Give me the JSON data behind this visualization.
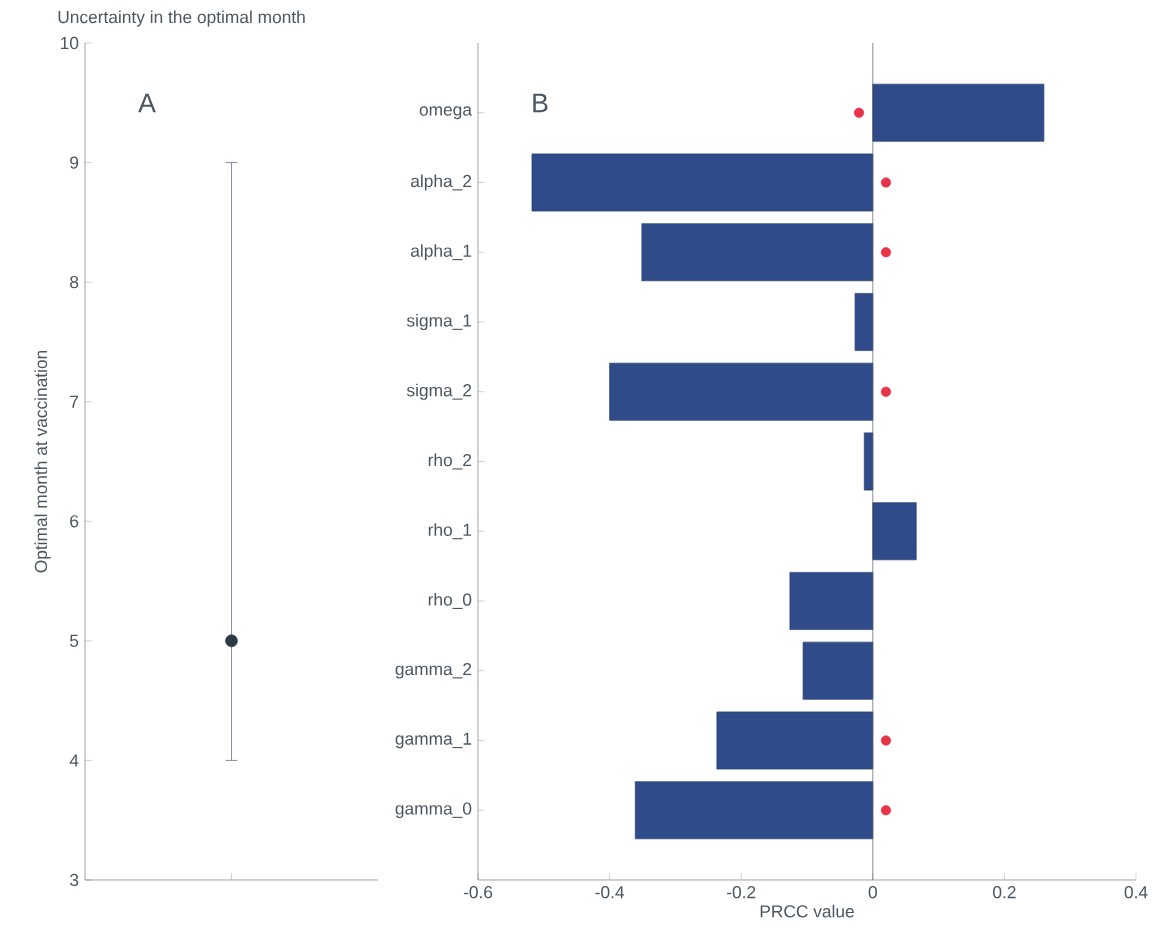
{
  "chart_data": [
    {
      "type": "scatter",
      "title": "Uncertainty in the optimal month",
      "ylabel": "Optimal month at vaccination",
      "categories": [
        null
      ],
      "values": [
        5
      ],
      "errors": [
        [
          4,
          9
        ]
      ],
      "ylim": [
        3,
        10
      ],
      "yticks": [
        3,
        4,
        5,
        6,
        7,
        8,
        9,
        10
      ],
      "color": "#2b3a42",
      "tick_labels": "y",
      "annotations": [
        "A"
      ]
    },
    {
      "type": "bar",
      "orientation": "horizontal",
      "xlabel": "PRCC value",
      "categories": [
        "omega",
        "alpha_2",
        "alpha_1",
        "sigma_1",
        "sigma_2",
        "rho_2",
        "rho_1",
        "rho_0",
        "gamma_2",
        "gamma_1",
        "gamma_0"
      ],
      "series": [
        {
          "type": "bar",
          "color": "#2f4b8a",
          "values": [
            0.26,
            -0.518,
            -0.351,
            -0.027,
            -0.4,
            -0.013,
            0.066,
            -0.126,
            -0.106,
            -0.237,
            -0.361
          ]
        },
        {
          "type": "scatter",
          "color": "#e8344a",
          "values": [
            -0.021,
            0.02,
            0.02,
            null,
            0.02,
            null,
            null,
            null,
            null,
            0.02,
            0.02
          ]
        }
      ],
      "xlim": [
        -0.6,
        0.4
      ],
      "xticks": [
        -0.6,
        -0.4,
        -0.2,
        0,
        0.2,
        0.4
      ],
      "annotations": [
        "B"
      ]
    }
  ]
}
